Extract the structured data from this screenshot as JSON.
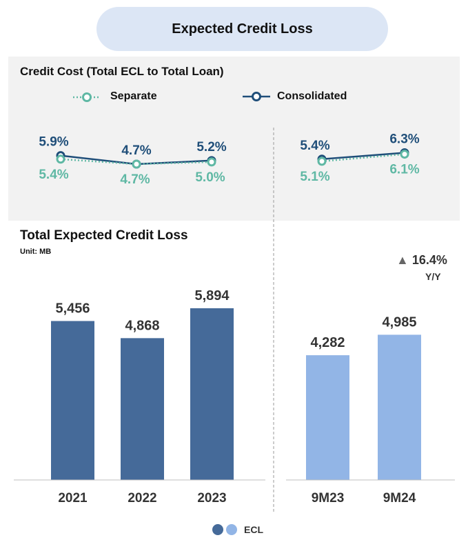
{
  "page_title": "Expected Credit Loss",
  "colors": {
    "separate": "#5fb8a4",
    "consolidated": "#1f4e79",
    "bar_annual": "#456a99",
    "bar_ytd": "#92b5e6"
  },
  "chart_data": [
    {
      "type": "line",
      "title": "Credit Cost (Total ECL to Total Loan)",
      "legend": [
        "Separate",
        "Consolidated"
      ],
      "groups": [
        {
          "x": [
            "2021",
            "2022",
            "2023"
          ],
          "series": [
            {
              "name": "Consolidated",
              "values": [
                5.9,
                4.7,
                5.2
              ],
              "labels": [
                "5.9%",
                "4.7%",
                "5.2%"
              ]
            },
            {
              "name": "Separate",
              "values": [
                5.4,
                4.7,
                5.0
              ],
              "labels": [
                "5.4%",
                "4.7%",
                "5.0%"
              ]
            }
          ]
        },
        {
          "x": [
            "9M23",
            "9M24"
          ],
          "series": [
            {
              "name": "Consolidated",
              "values": [
                5.4,
                6.3
              ],
              "labels": [
                "5.4%",
                "6.3%"
              ]
            },
            {
              "name": "Separate",
              "values": [
                5.1,
                6.1
              ],
              "labels": [
                "5.1%",
                "6.1%"
              ]
            }
          ]
        }
      ]
    },
    {
      "type": "bar",
      "title": "Total Expected Credit Loss",
      "unit": "Unit: MB",
      "categories": [
        "2021",
        "2022",
        "2023",
        "9M23",
        "9M24"
      ],
      "series": [
        {
          "name": "ECL",
          "values": [
            5456,
            4868,
            5894,
            4282,
            4985
          ]
        }
      ],
      "value_labels": [
        "5,456",
        "4,868",
        "5,894",
        "4,282",
        "4,985"
      ],
      "annotation": {
        "marker": "▲",
        "value": "16.4%",
        "label": "Y/Y"
      },
      "legend": "ECL"
    }
  ]
}
